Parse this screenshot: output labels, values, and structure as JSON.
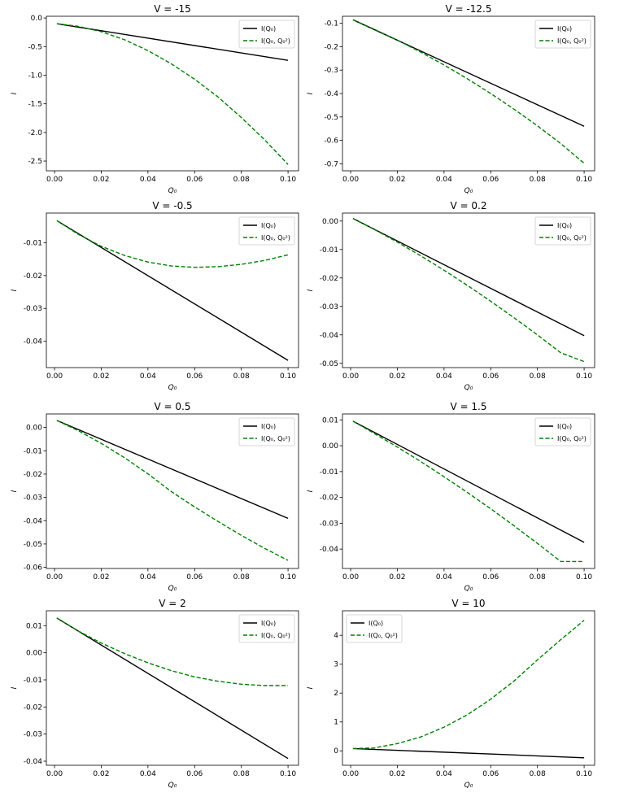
{
  "figure": {
    "title": ""
  },
  "legend_labels": {
    "linear": "I(Q₀)",
    "quadratic": "I(Q₀, Q₀²)"
  },
  "colors": {
    "linear": "#000000",
    "quadratic": "#008000"
  },
  "chart_data": [
    {
      "type": "line",
      "title": "V = -15",
      "xlabel": "Q₀",
      "ylabel": "I",
      "legend": "top-right",
      "xlim": [
        -0.0035,
        0.1045
      ],
      "ylim": [
        -2.67,
        0.03
      ],
      "xticks": [
        0.0,
        0.02,
        0.04,
        0.06,
        0.08,
        0.1
      ],
      "xtick_labels": [
        "0.00",
        "0.02",
        "0.04",
        "0.06",
        "0.08",
        "0.10"
      ],
      "yticks": [
        0.0,
        -0.5,
        -1.0,
        -1.5,
        -2.0,
        -2.5
      ],
      "ytick_labels": [
        "0.0",
        "-0.5",
        "-1.0",
        "-1.5",
        "-2.0",
        "-2.5"
      ],
      "series": [
        {
          "name": "I(Q₀)",
          "style": "solid",
          "x": [
            0.001,
            0.1
          ],
          "y": [
            -0.1,
            -0.74
          ]
        },
        {
          "name": "I(Q₀, Q₀²)",
          "style": "dashed",
          "x": [
            0.001,
            0.01,
            0.02,
            0.03,
            0.04,
            0.05,
            0.06,
            0.07,
            0.08,
            0.09,
            0.1
          ],
          "y": [
            -0.1,
            -0.145,
            -0.24,
            -0.38,
            -0.57,
            -0.8,
            -1.07,
            -1.38,
            -1.74,
            -2.13,
            -2.56
          ]
        }
      ]
    },
    {
      "type": "line",
      "title": "V = -12.5",
      "xlabel": "Q₀",
      "ylabel": "I",
      "legend": "top-right",
      "xlim": [
        -0.0035,
        0.1045
      ],
      "ylim": [
        -0.73,
        -0.07
      ],
      "xticks": [
        0.0,
        0.02,
        0.04,
        0.06,
        0.08,
        0.1
      ],
      "xtick_labels": [
        "0.00",
        "0.02",
        "0.04",
        "0.06",
        "0.08",
        "0.10"
      ],
      "yticks": [
        -0.1,
        -0.2,
        -0.3,
        -0.4,
        -0.5,
        -0.6,
        -0.7
      ],
      "ytick_labels": [
        "-0.1",
        "-0.2",
        "-0.3",
        "-0.4",
        "-0.5",
        "-0.6",
        "-0.7"
      ],
      "series": [
        {
          "name": "I(Q₀)",
          "style": "solid",
          "x": [
            0.001,
            0.1
          ],
          "y": [
            -0.085,
            -0.54
          ]
        },
        {
          "name": "I(Q₀, Q₀²)",
          "style": "dashed",
          "x": [
            0.001,
            0.01,
            0.02,
            0.03,
            0.04,
            0.05,
            0.06,
            0.07,
            0.08,
            0.09,
            0.1
          ],
          "y": [
            -0.085,
            -0.125,
            -0.172,
            -0.223,
            -0.278,
            -0.337,
            -0.4,
            -0.467,
            -0.538,
            -0.614,
            -0.698
          ]
        }
      ]
    },
    {
      "type": "line",
      "title": "V = -0.5",
      "xlabel": "Q₀",
      "ylabel": "I",
      "legend": "top-right",
      "xlim": [
        -0.0035,
        0.1045
      ],
      "ylim": [
        -0.048,
        -0.001
      ],
      "xticks": [
        0.0,
        0.02,
        0.04,
        0.06,
        0.08,
        0.1
      ],
      "xtick_labels": [
        "0.00",
        "0.02",
        "0.04",
        "0.06",
        "0.08",
        "0.10"
      ],
      "yticks": [
        -0.01,
        -0.02,
        -0.03,
        -0.04
      ],
      "ytick_labels": [
        "-0.01",
        "-0.02",
        "-0.03",
        "-0.04"
      ],
      "series": [
        {
          "name": "I(Q₀)",
          "style": "solid",
          "x": [
            0.001,
            0.1
          ],
          "y": [
            -0.0033,
            -0.0458
          ]
        },
        {
          "name": "I(Q₀, Q₀²)",
          "style": "dashed",
          "x": [
            0.001,
            0.01,
            0.02,
            0.03,
            0.04,
            0.05,
            0.06,
            0.07,
            0.08,
            0.09,
            0.1
          ],
          "y": [
            -0.0033,
            -0.0074,
            -0.0111,
            -0.0139,
            -0.0159,
            -0.0171,
            -0.0175,
            -0.0173,
            -0.0166,
            -0.0154,
            -0.0137
          ]
        }
      ]
    },
    {
      "type": "line",
      "title": "V = 0.2",
      "xlabel": "Q₀",
      "ylabel": "I",
      "legend": "top-right",
      "xlim": [
        -0.0035,
        0.1045
      ],
      "ylim": [
        -0.0515,
        0.0028
      ],
      "xticks": [
        0.0,
        0.02,
        0.04,
        0.06,
        0.08,
        0.1
      ],
      "xtick_labels": [
        "0.00",
        "0.02",
        "0.04",
        "0.06",
        "0.08",
        "0.10"
      ],
      "yticks": [
        0.0,
        -0.01,
        -0.02,
        -0.03,
        -0.04,
        -0.05
      ],
      "ytick_labels": [
        "0.00",
        "-0.01",
        "-0.02",
        "-0.03",
        "-0.04",
        "-0.05"
      ],
      "series": [
        {
          "name": "I(Q₀)",
          "style": "solid",
          "x": [
            0.001,
            0.1
          ],
          "y": [
            0.0009,
            -0.0403
          ]
        },
        {
          "name": "I(Q₀, Q₀²)",
          "style": "dashed",
          "x": [
            0.001,
            0.01,
            0.02,
            0.03,
            0.04,
            0.05,
            0.06,
            0.07,
            0.08,
            0.09,
            0.1
          ],
          "y": [
            0.0009,
            -0.0029,
            -0.0074,
            -0.0122,
            -0.0173,
            -0.0226,
            -0.0282,
            -0.034,
            -0.04,
            -0.0463,
            -0.0494
          ]
        }
      ]
    },
    {
      "type": "line",
      "title": "V = 0.5",
      "xlabel": "Q₀",
      "ylabel": "I",
      "legend": "top-right",
      "xlim": [
        -0.0035,
        0.1045
      ],
      "ylim": [
        -0.0605,
        0.0058
      ],
      "xticks": [
        0.0,
        0.02,
        0.04,
        0.06,
        0.08,
        0.1
      ],
      "xtick_labels": [
        "0.00",
        "0.02",
        "0.04",
        "0.06",
        "0.08",
        "0.10"
      ],
      "yticks": [
        0.0,
        -0.01,
        -0.02,
        -0.03,
        -0.04,
        -0.05,
        -0.06
      ],
      "ytick_labels": [
        "0.00",
        "-0.01",
        "-0.02",
        "-0.03",
        "-0.04",
        "-0.05",
        "-0.06"
      ],
      "series": [
        {
          "name": "I(Q₀)",
          "style": "solid",
          "x": [
            0.001,
            0.1
          ],
          "y": [
            0.003,
            -0.039
          ]
        },
        {
          "name": "I(Q₀, Q₀²)",
          "style": "dashed",
          "x": [
            0.001,
            0.01,
            0.02,
            0.03,
            0.04,
            0.05,
            0.06,
            0.07,
            0.08,
            0.09,
            0.1
          ],
          "y": [
            0.003,
            -0.0013,
            -0.0068,
            -0.013,
            -0.0199,
            -0.0275,
            -0.0341,
            -0.0403,
            -0.0463,
            -0.0519,
            -0.057
          ]
        }
      ]
    },
    {
      "type": "line",
      "title": "V = 1.5",
      "xlabel": "Q₀",
      "ylabel": "I",
      "legend": "top-right",
      "xlim": [
        -0.0035,
        0.1045
      ],
      "ylim": [
        -0.0475,
        0.0123
      ],
      "xticks": [
        0.0,
        0.02,
        0.04,
        0.06,
        0.08,
        0.1
      ],
      "xtick_labels": [
        "0.00",
        "0.02",
        "0.04",
        "0.06",
        "0.08",
        "0.10"
      ],
      "yticks": [
        0.01,
        0.0,
        -0.01,
        -0.02,
        -0.03,
        -0.04
      ],
      "ytick_labels": [
        "0.01",
        "0.00",
        "-0.01",
        "-0.02",
        "-0.03",
        "-0.04"
      ],
      "series": [
        {
          "name": "I(Q₀)",
          "style": "solid",
          "x": [
            0.001,
            0.1
          ],
          "y": [
            0.0095,
            -0.0374
          ]
        },
        {
          "name": "I(Q₀, Q₀²)",
          "style": "dashed",
          "x": [
            0.001,
            0.01,
            0.02,
            0.03,
            0.04,
            0.05,
            0.06,
            0.07,
            0.08,
            0.09,
            0.1
          ],
          "y": [
            0.0095,
            0.0048,
            -0.0005,
            -0.0061,
            -0.012,
            -0.0181,
            -0.0244,
            -0.031,
            -0.0378,
            -0.0448,
            -0.0448
          ]
        }
      ]
    },
    {
      "type": "line",
      "title": "V = 2",
      "xlabel": "Q₀",
      "ylabel": "I",
      "legend": "top-right",
      "xlim": [
        -0.0035,
        0.1045
      ],
      "ylim": [
        -0.0415,
        0.0155
      ],
      "xticks": [
        0.0,
        0.02,
        0.04,
        0.06,
        0.08,
        0.1
      ],
      "xtick_labels": [
        "0.00",
        "0.02",
        "0.04",
        "0.06",
        "0.08",
        "0.10"
      ],
      "yticks": [
        0.01,
        0.0,
        -0.01,
        -0.02,
        -0.03,
        -0.04
      ],
      "ytick_labels": [
        "0.01",
        "0.00",
        "-0.01",
        "-0.02",
        "-0.03",
        "-0.04"
      ],
      "series": [
        {
          "name": "I(Q₀)",
          "style": "solid",
          "x": [
            0.001,
            0.1
          ],
          "y": [
            0.0128,
            -0.039
          ]
        },
        {
          "name": "I(Q₀, Q₀²)",
          "style": "dashed",
          "x": [
            0.001,
            0.01,
            0.02,
            0.03,
            0.04,
            0.05,
            0.06,
            0.07,
            0.08,
            0.09,
            0.1
          ],
          "y": [
            0.0128,
            0.0081,
            0.0036,
            -0.0003,
            -0.0037,
            -0.0066,
            -0.0089,
            -0.0105,
            -0.0116,
            -0.0121,
            -0.0121
          ]
        }
      ]
    },
    {
      "type": "line",
      "title": "V = 10",
      "xlabel": "Q₀",
      "ylabel": "I",
      "legend": "top-left",
      "xlim": [
        -0.0035,
        0.1045
      ],
      "ylim": [
        -0.5,
        4.85
      ],
      "xticks": [
        0.0,
        0.02,
        0.04,
        0.06,
        0.08,
        0.1
      ],
      "xtick_labels": [
        "0.00",
        "0.02",
        "0.04",
        "0.06",
        "0.08",
        "0.10"
      ],
      "yticks": [
        0,
        1,
        2,
        3,
        4
      ],
      "ytick_labels": [
        "0",
        "1",
        "2",
        "3",
        "4"
      ],
      "series": [
        {
          "name": "I(Q₀)",
          "style": "solid",
          "x": [
            0.001,
            0.1
          ],
          "y": [
            0.08,
            -0.24
          ]
        },
        {
          "name": "I(Q₀, Q₀²)",
          "style": "dashed",
          "x": [
            0.001,
            0.01,
            0.02,
            0.03,
            0.04,
            0.05,
            0.06,
            0.07,
            0.08,
            0.09,
            0.1
          ],
          "y": [
            0.08,
            0.1,
            0.25,
            0.48,
            0.82,
            1.25,
            1.79,
            2.42,
            3.15,
            3.85,
            4.52
          ]
        }
      ]
    }
  ]
}
